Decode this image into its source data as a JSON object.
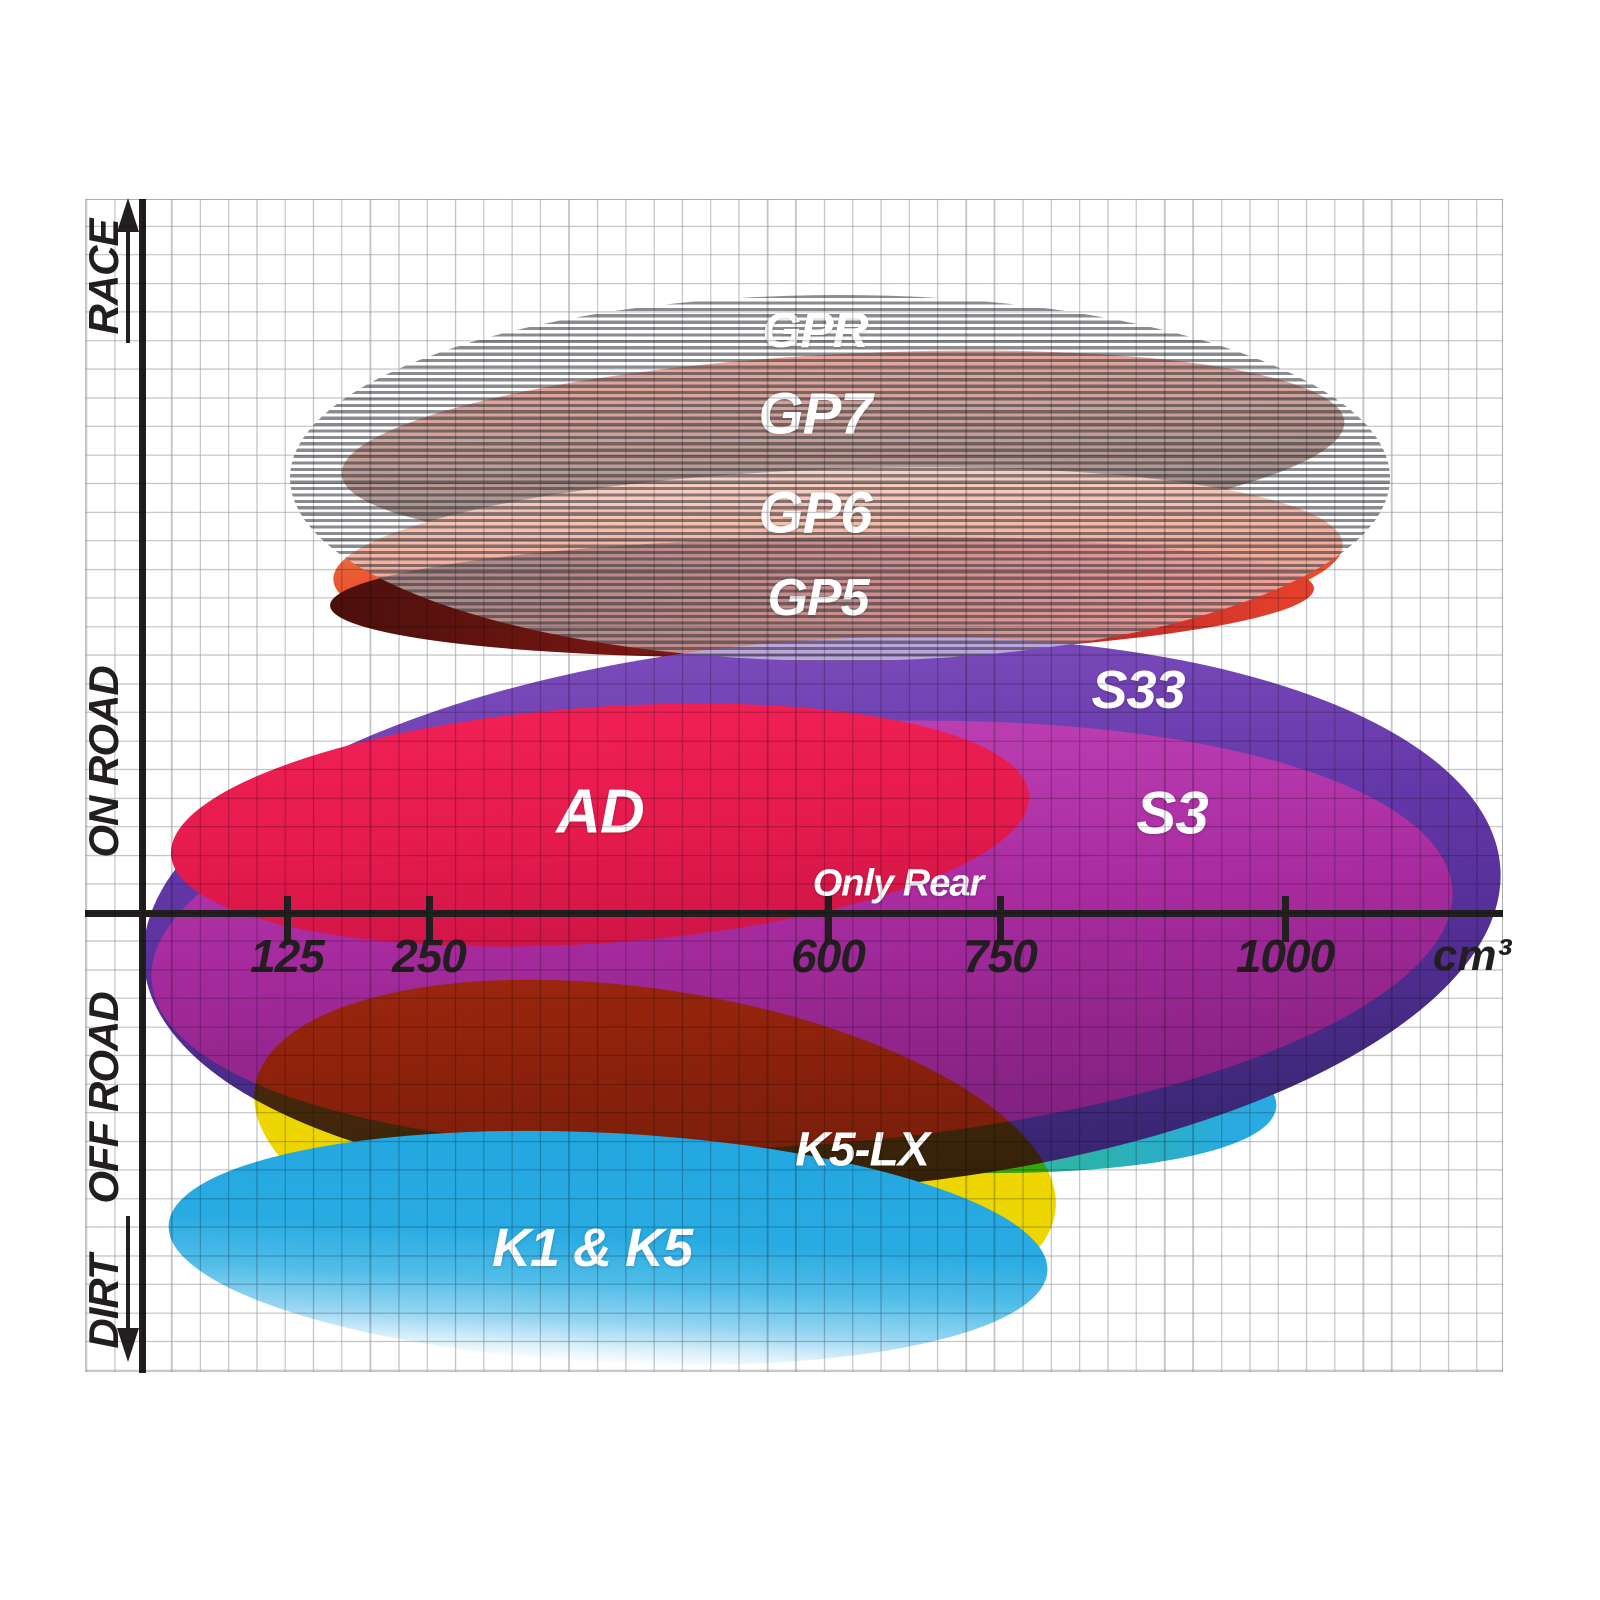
{
  "axis": {
    "x_unit": "cm³",
    "x_ticks": [
      "125",
      "250",
      "600",
      "750",
      "1000"
    ],
    "terrain_labels": [
      "RACE",
      "ON ROAD",
      "OFF ROAD",
      "DIRT"
    ]
  },
  "regions": {
    "gpr": "GPR",
    "gp7": "GP7",
    "gp6": "GP6",
    "gp5": "GP5",
    "s33": "S33",
    "s3": "S3",
    "ad": "AD",
    "only_rear": "Only Rear",
    "k5lx": "K5-LX",
    "k1k5": "K1 & K5"
  },
  "colors": {
    "axis_black": "#231f20",
    "grid_gray": "#96979b",
    "gpr_stripe_gray": "#696b70",
    "gp7_red_brown": "#9a4734",
    "gp6_orange_red": "#e64427",
    "gp5_dark_red": "#9c1d1b",
    "s33_violet": "#5c34a0",
    "s3_magenta": "#a82ba0",
    "ad_crimson": "#e51a4d",
    "yellow": "#f6ea15",
    "k5lx_teal": "#2bb2ab",
    "k5lx_azure": "#29abe2",
    "k1k5_cyan": "#29abe2"
  },
  "chart_data": {
    "type": "area",
    "title": "",
    "xlabel": "cm³",
    "ylabel": "",
    "x_ticks": [
      125,
      250,
      600,
      750,
      1000
    ],
    "x_range_px_linear": true,
    "y_categories": [
      "RACE",
      "ON ROAD",
      "OFF ROAD",
      "DIRT"
    ],
    "grid": true,
    "legend": "labels drawn inside each ellipse region",
    "series": [
      {
        "name": "GPR",
        "terrain": "RACE",
        "cc_range": [
          125,
          1075
        ],
        "style": "grey-hatched ellipse"
      },
      {
        "name": "GP7",
        "terrain": "RACE",
        "cc_range": [
          165,
          1070
        ],
        "style": "dark red-brown ellipse"
      },
      {
        "name": "GP6",
        "terrain": "RACE / ON ROAD",
        "cc_range": [
          160,
          1040
        ],
        "style": "orange-red ellipse"
      },
      {
        "name": "GP5",
        "terrain": "RACE / ON ROAD",
        "cc_range": [
          165,
          1020
        ],
        "style": "dark crimson ellipse"
      },
      {
        "name": "S33",
        "terrain": "ON ROAD",
        "cc_range": [
          50,
          1180
        ],
        "style": "violet ellipse"
      },
      {
        "name": "S3",
        "terrain": "ON ROAD",
        "cc_range": [
          60,
          1150
        ],
        "style": "magenta ellipse"
      },
      {
        "name": "AD",
        "terrain": "ON ROAD",
        "cc_range": [
          75,
          780
        ],
        "style": "crimson ellipse",
        "note": "Only Rear"
      },
      {
        "name": "K5-LX",
        "terrain": "OFF ROAD",
        "cc_range": [
          215,
          995
        ],
        "style": "yellow-green to teal ellipse"
      },
      {
        "name": "K1 & K5",
        "terrain": "DIRT / OFF ROAD",
        "cc_range": [
          70,
          795
        ],
        "style": "cyan ellipse fading white at bottom"
      }
    ]
  }
}
